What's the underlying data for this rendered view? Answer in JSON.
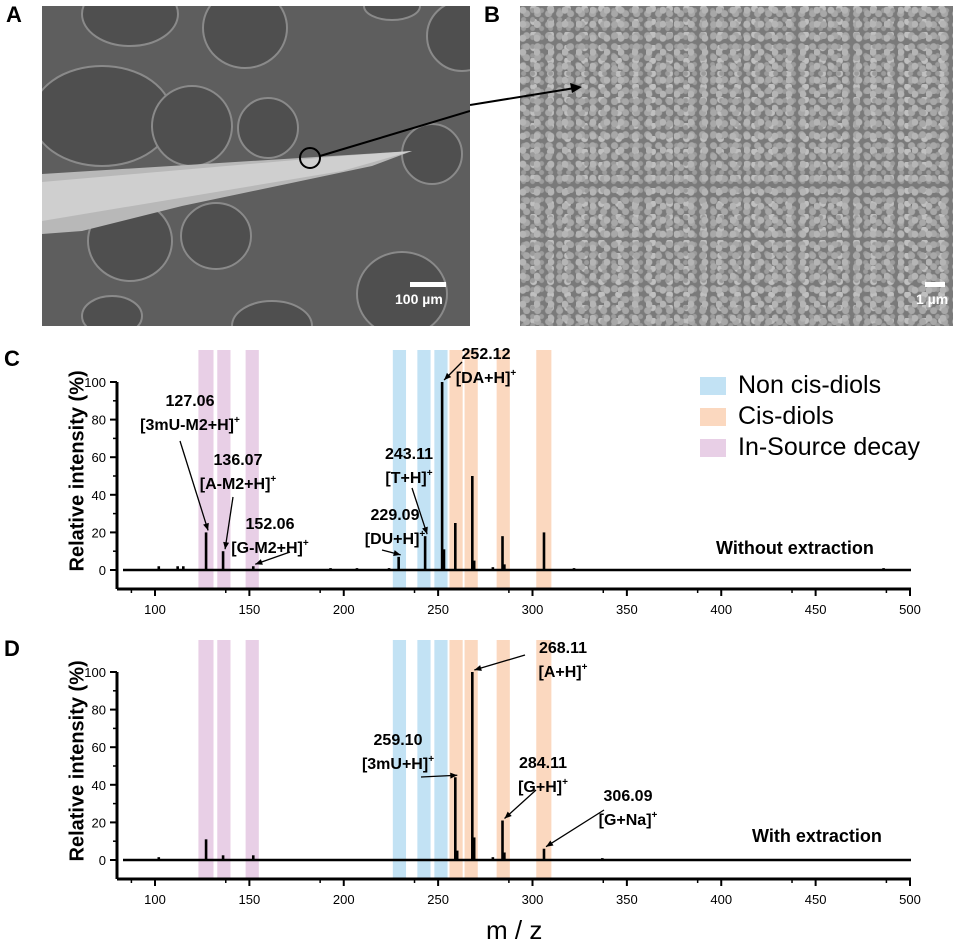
{
  "panels": {
    "a": {
      "letter": "A",
      "scale_label": "100 µm"
    },
    "b": {
      "letter": "B",
      "scale_label": "1 µm"
    },
    "c": {
      "letter": "C",
      "condition": "Without extraction"
    },
    "d": {
      "letter": "D",
      "condition": "With extraction"
    }
  },
  "legend": [
    {
      "label": "Non cis-diols",
      "color": "#c2e2f4"
    },
    {
      "label": "Cis-diols",
      "color": "#fbd8bf"
    },
    {
      "label": "In-Source decay",
      "color": "#e8cfe6"
    }
  ],
  "axes": {
    "ylabel": "Relative intensity (%)",
    "xlabel": "m / z",
    "xticks": [
      100,
      150,
      200,
      250,
      300,
      350,
      400,
      450,
      500
    ],
    "yticks": [
      0,
      20,
      40,
      60,
      80,
      100
    ]
  },
  "chart_data": [
    {
      "type": "bar",
      "title": "C — Without extraction",
      "xlabel": "m / z",
      "ylabel": "Relative intensity (%)",
      "xlim": [
        80,
        500
      ],
      "ylim": [
        -10,
        100
      ],
      "bands": [
        {
          "category": "In-Source decay",
          "x": [
            123,
            131
          ]
        },
        {
          "category": "In-Source decay",
          "x": [
            133,
            140
          ]
        },
        {
          "category": "In-Source decay",
          "x": [
            148,
            155
          ]
        },
        {
          "category": "Non cis-diols",
          "x": [
            226,
            233
          ]
        },
        {
          "category": "Non cis-diols",
          "x": [
            239,
            246
          ]
        },
        {
          "category": "Non cis-diols",
          "x": [
            248,
            255
          ]
        },
        {
          "category": "Cis-diols",
          "x": [
            256,
            263
          ]
        },
        {
          "category": "Cis-diols",
          "x": [
            264,
            271
          ]
        },
        {
          "category": "Cis-diols",
          "x": [
            281,
            288
          ]
        },
        {
          "category": "Cis-diols",
          "x": [
            302,
            310
          ]
        }
      ],
      "peaks": [
        {
          "mz": 102,
          "intensity": 2
        },
        {
          "mz": 112,
          "intensity": 2
        },
        {
          "mz": 115,
          "intensity": 2
        },
        {
          "mz": 127.06,
          "intensity": 20,
          "label": "127.06",
          "ion": "[3mU-M2+H]"
        },
        {
          "mz": 136.07,
          "intensity": 10,
          "label": "136.07",
          "ion": "[A-M2+H]"
        },
        {
          "mz": 152.06,
          "intensity": 2,
          "label": "152.06",
          "ion": "[G-M2+H]"
        },
        {
          "mz": 193,
          "intensity": 1
        },
        {
          "mz": 207,
          "intensity": 1
        },
        {
          "mz": 224,
          "intensity": 1
        },
        {
          "mz": 229.09,
          "intensity": 7,
          "label": "229.09",
          "ion": "[DU+H]"
        },
        {
          "mz": 243.11,
          "intensity": 18,
          "label": "243.11",
          "ion": "[T+H]"
        },
        {
          "mz": 252.12,
          "intensity": 100,
          "label": "252.12",
          "ion": "[DA+H]"
        },
        {
          "mz": 253.1,
          "intensity": 11
        },
        {
          "mz": 259.1,
          "intensity": 25
        },
        {
          "mz": 268.11,
          "intensity": 50
        },
        {
          "mz": 269.1,
          "intensity": 5
        },
        {
          "mz": 279,
          "intensity": 1.5
        },
        {
          "mz": 284.11,
          "intensity": 18
        },
        {
          "mz": 285.1,
          "intensity": 3
        },
        {
          "mz": 306.09,
          "intensity": 20
        },
        {
          "mz": 322,
          "intensity": 1
        },
        {
          "mz": 486,
          "intensity": 1
        }
      ]
    },
    {
      "type": "bar",
      "title": "D — With extraction",
      "xlabel": "m / z",
      "ylabel": "Relative intensity (%)",
      "xlim": [
        80,
        500
      ],
      "ylim": [
        -10,
        100
      ],
      "peaks": [
        {
          "mz": 102,
          "intensity": 1.5
        },
        {
          "mz": 127.06,
          "intensity": 11
        },
        {
          "mz": 136.07,
          "intensity": 2.5
        },
        {
          "mz": 152.06,
          "intensity": 2.5
        },
        {
          "mz": 259.1,
          "intensity": 44,
          "label": "259.10",
          "ion": "[3mU+H]"
        },
        {
          "mz": 260.1,
          "intensity": 5
        },
        {
          "mz": 268.11,
          "intensity": 100,
          "label": "268.11",
          "ion": "[A+H]"
        },
        {
          "mz": 269.1,
          "intensity": 12
        },
        {
          "mz": 279,
          "intensity": 1.5
        },
        {
          "mz": 284.11,
          "intensity": 21,
          "label": "284.11",
          "ion": "[G+H]"
        },
        {
          "mz": 285.1,
          "intensity": 4
        },
        {
          "mz": 306.09,
          "intensity": 6,
          "label": "306.09",
          "ion": "[G+Na]"
        },
        {
          "mz": 337,
          "intensity": 1
        }
      ]
    }
  ]
}
